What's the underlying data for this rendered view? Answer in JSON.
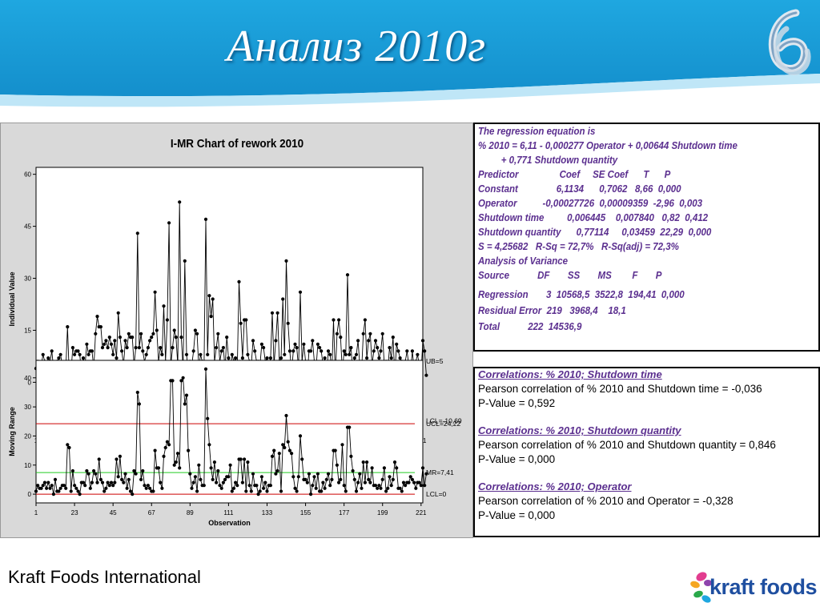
{
  "slide": {
    "title": "Анализ 2010г",
    "footer": "Kraft Foods International",
    "logo_text": "kraft foods",
    "colors": {
      "header_blue": "#1e9fd8",
      "header_light": "#bfe6f7",
      "accent_purple": "#5b2f8f",
      "kraft_blue": "#1f4fa0"
    }
  },
  "chart_data": [
    {
      "type": "line",
      "title": "I-MR Chart of rework 2010",
      "xlabel": "Observation",
      "ylabel": "Individual Value",
      "x_ticks": [
        1,
        23,
        45,
        67,
        89,
        111,
        133,
        155,
        177,
        199,
        221
      ],
      "y_ticks": [
        0,
        15,
        30,
        45,
        60
      ],
      "xlim": [
        1,
        222
      ],
      "ylim": [
        -14,
        62
      ],
      "center_value": 6.11,
      "lcl_value": -10.69,
      "labels": {
        "ucl": "UB=5",
        "lcl": "LCL=-10,69"
      },
      "series": [
        {
          "values": [
            4,
            6,
            3,
            5,
            8,
            6,
            5,
            7,
            6,
            9,
            4,
            5,
            6,
            7,
            8,
            5,
            2,
            4,
            16,
            2,
            3,
            10,
            8,
            9,
            9,
            8,
            3,
            7,
            5,
            11,
            8,
            9,
            9,
            4,
            14,
            19,
            16,
            16,
            10,
            11,
            12,
            10,
            13,
            11,
            8,
            12,
            7,
            20,
            13,
            9,
            5,
            12,
            10,
            14,
            13,
            13,
            5,
            10,
            43,
            10,
            14,
            9,
            6,
            8,
            10,
            12,
            13,
            14,
            26,
            15,
            6,
            10,
            8,
            22,
            6,
            18,
            46,
            5,
            10,
            15,
            13,
            5,
            52,
            13,
            4,
            35,
            8,
            3,
            6,
            5,
            9,
            15,
            14,
            4,
            8,
            6,
            4,
            47,
            8,
            25,
            19,
            24,
            6,
            10,
            14,
            6,
            9,
            10,
            4,
            13,
            7,
            3,
            8,
            6,
            7,
            4,
            29,
            17,
            7,
            18,
            18,
            8,
            6,
            5,
            12,
            9,
            6,
            6,
            5,
            11,
            10,
            6,
            7,
            4,
            7,
            20,
            5,
            12,
            20,
            6,
            7,
            24,
            8,
            35,
            17,
            9,
            3,
            9,
            11,
            10,
            4,
            26,
            6,
            11,
            6,
            2,
            9,
            9,
            12,
            6,
            4,
            11,
            10,
            9,
            5,
            7,
            2,
            9,
            8,
            3,
            18,
            2,
            14,
            18,
            13,
            3,
            9,
            8,
            31,
            8,
            10,
            2,
            7,
            8,
            12,
            5,
            3,
            14,
            18,
            7,
            12,
            14,
            5,
            9,
            12,
            10,
            7,
            9,
            14,
            5,
            6,
            4,
            10,
            7,
            13,
            2,
            11,
            9,
            7,
            6,
            2,
            6,
            9,
            5,
            3,
            9,
            4,
            6,
            8,
            5,
            2,
            12,
            9,
            2
          ]
        }
      ]
    },
    {
      "type": "line",
      "xlabel": "Observation",
      "ylabel": "Moving Range",
      "x_ticks": [
        1,
        23,
        45,
        67,
        89,
        111,
        133,
        155,
        177,
        199,
        221
      ],
      "y_ticks": [
        0,
        10,
        20,
        30,
        40
      ],
      "xlim": [
        1,
        222
      ],
      "ylim": [
        -3,
        46
      ],
      "ucl_value": 24.22,
      "center_value": 7.41,
      "lcl_value": 0,
      "labels": {
        "ucl": "UCL=24,22",
        "center": "MR=7,41",
        "lcl": "LCL=0"
      },
      "series": [
        {
          "values": [
            1,
            3,
            2,
            2,
            3,
            4,
            2,
            4,
            2,
            3,
            0,
            5,
            1,
            1,
            2,
            3,
            3,
            2,
            17,
            16,
            1,
            8,
            3,
            2,
            1,
            0,
            4,
            4,
            3,
            8,
            7,
            2,
            4,
            8,
            7,
            4,
            12,
            5,
            4,
            1,
            2,
            4,
            3,
            4,
            3,
            4,
            12,
            6,
            13,
            5,
            4,
            7,
            2,
            5,
            1,
            0,
            8,
            7,
            35,
            31,
            5,
            8,
            3,
            2,
            3,
            2,
            1,
            1,
            15,
            9,
            9,
            4,
            2,
            13,
            16,
            18,
            17,
            39,
            39,
            10,
            11,
            14,
            9,
            39,
            40,
            31,
            34,
            15,
            7,
            2,
            4,
            6,
            1,
            10,
            5,
            3,
            3,
            43,
            26,
            17,
            9,
            5,
            11,
            4,
            8,
            3,
            2,
            4,
            5,
            6,
            6,
            10,
            1,
            2,
            4,
            3,
            12,
            12,
            4,
            12,
            1,
            11,
            3,
            1,
            7,
            3,
            3,
            0,
            1,
            6,
            2,
            4,
            1,
            3,
            3,
            13,
            15,
            7,
            8,
            14,
            1,
            17,
            16,
            27,
            18,
            15,
            14,
            6,
            2,
            1,
            6,
            20,
            12,
            5,
            5,
            4,
            7,
            0,
            3,
            6,
            2,
            7,
            1,
            1,
            4,
            2,
            5,
            7,
            3,
            5,
            15,
            15,
            10,
            4,
            5,
            17,
            3,
            1,
            23,
            23,
            13,
            8,
            5,
            1,
            4,
            7,
            2,
            11,
            4,
            11,
            5,
            4,
            9,
            3,
            3,
            2,
            3,
            2,
            5,
            9,
            1,
            2,
            6,
            3,
            5,
            11,
            9,
            2,
            2,
            1,
            4,
            3,
            4,
            4,
            6,
            5,
            4,
            2,
            4,
            4,
            3,
            9,
            3,
            7
          ]
        }
      ]
    }
  ],
  "regression": {
    "lines": [
      "The regression equation is",
      "% 2010 = 6,11 - 0,000277 Operator + 0,00644 Shutdown time",
      "         + 0,771 Shutdown quantity",
      "Predictor                Coef     SE Coef      T      P",
      "Constant               6,1134      0,7062   8,66  0,000",
      "Operator          -0,00027726  0,00009359  -2,96  0,003",
      "Shutdown time         0,006445    0,007840   0,82  0,412",
      "Shutdown quantity      0,77114     0,03459  22,29  0,000",
      "S = 4,25682   R-Sq = 72,7%   R-Sq(adj) = 72,3%",
      "Analysis of Variance",
      "Source           DF       SS       MS        F       P",
      "Regression       3  10568,5  3522,8  194,41  0,000",
      "Residual Error  219   3968,4    18,1",
      "Total           222  14536,9"
    ]
  },
  "correlations": [
    {
      "heading": "Correlations: % 2010; Shutdown time",
      "line1": "Pearson correlation of % 2010 and Shutdown time = -0,036",
      "line2": "P-Value = 0,592"
    },
    {
      "heading": "Correlations: % 2010; Shutdown quantity",
      "line1": "Pearson correlation of % 2010 and Shutdown quantity = 0,846",
      "line2": "P-Value = 0,000"
    },
    {
      "heading": "Correlations: % 2010; Operator",
      "line1": "Pearson correlation of % 2010 and Operator = -0,328",
      "line2": "P-Value = 0,000"
    }
  ]
}
